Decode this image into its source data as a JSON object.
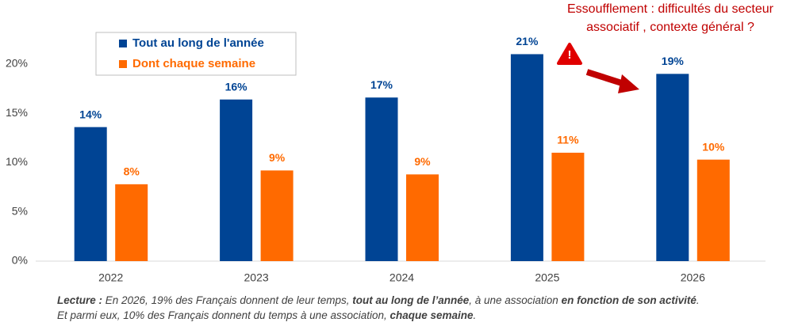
{
  "chart_data": {
    "type": "bar",
    "categories": [
      "2022",
      "2023",
      "2024",
      "2025",
      "2026"
    ],
    "series": [
      {
        "name": "Tout au long de l'année",
        "color": "#004494",
        "values": [
          13.6,
          16.4,
          16.6,
          21.0,
          19.0
        ],
        "value_labels": [
          "14%",
          "16%",
          "17%",
          "21%",
          "19%"
        ]
      },
      {
        "name": "Dont chaque semaine",
        "color": "#ff6a00",
        "values": [
          7.8,
          9.2,
          8.8,
          11.0,
          10.3
        ],
        "value_labels": [
          "8%",
          "9%",
          "9%",
          "11%",
          "10%"
        ]
      }
    ],
    "ylim": [
      0,
      22
    ],
    "yticks": [
      {
        "value": 0,
        "label": "0%"
      },
      {
        "value": 5,
        "label": "5%"
      },
      {
        "value": 10,
        "label": "10%"
      },
      {
        "value": 15,
        "label": "15%"
      },
      {
        "value": 20,
        "label": "20%"
      }
    ],
    "grid": false,
    "legend": "top-left",
    "annotations": [
      "Essoufflement : difficultés du secteur",
      "associatif , contexte général ?"
    ],
    "note_lines": [
      [
        {
          "text": "Lecture :",
          "bold": true
        },
        {
          "text": " En 2026, 19% des Français donnent de leur temps, ",
          "bold": false
        },
        {
          "text": "tout au long de l’année",
          "bold": true
        },
        {
          "text": ", à une association ",
          "bold": false
        },
        {
          "text": "en fonction de son activité",
          "bold": true
        },
        {
          "text": ".",
          "bold": false
        }
      ],
      [
        {
          "text": "Et parmi eux, 10% des Français donnent du temps à une association, ",
          "bold": false
        },
        {
          "text": "chaque semaine",
          "bold": true
        },
        {
          "text": ".",
          "bold": false
        }
      ]
    ]
  }
}
